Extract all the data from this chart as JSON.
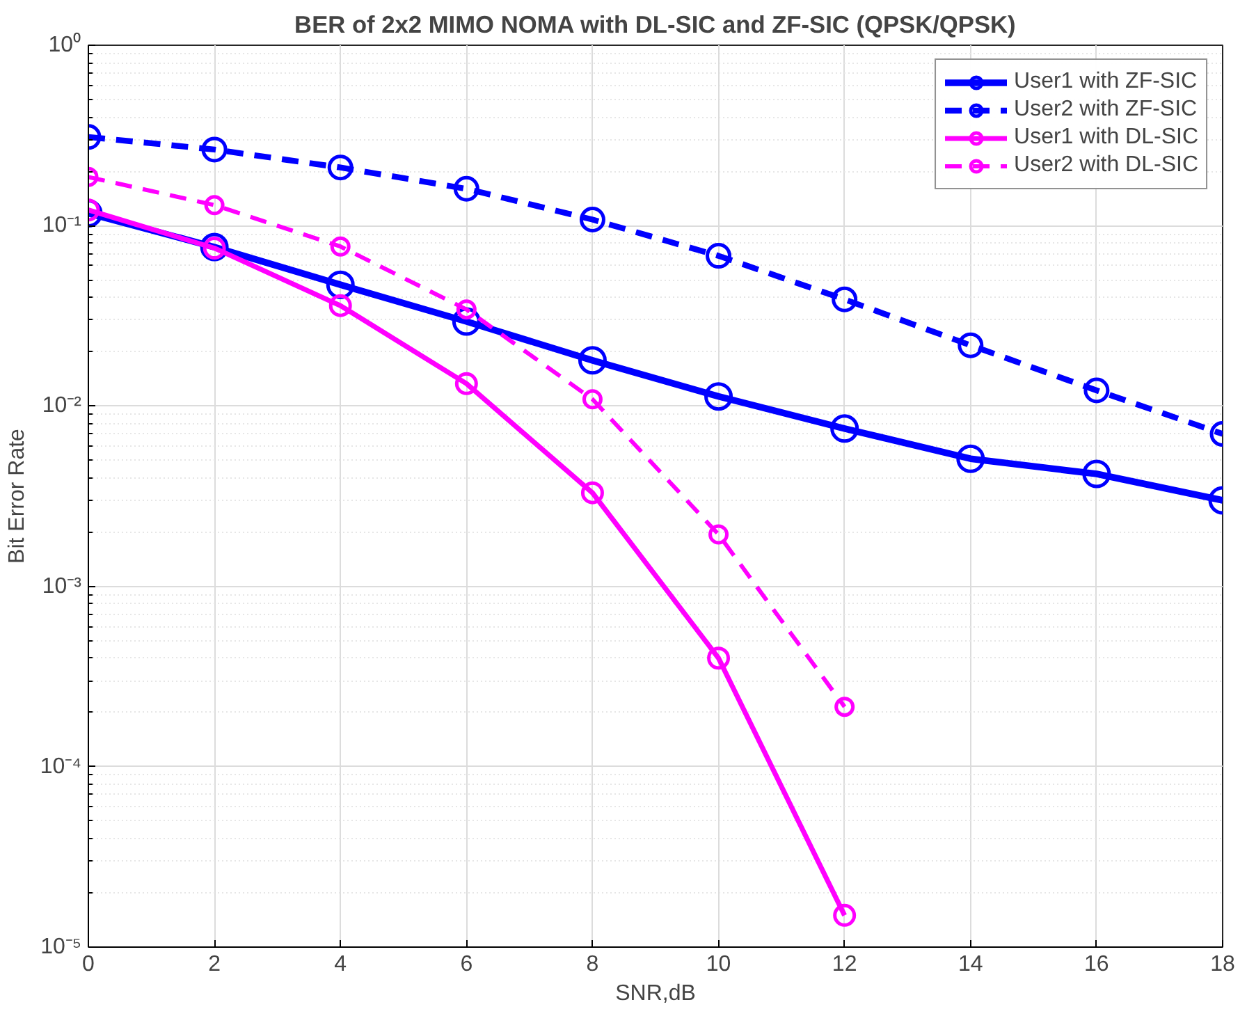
{
  "chart_data": {
    "type": "line",
    "title": "BER of 2x2 MIMO NOMA with DL-SIC and ZF-SIC (QPSK/QPSK)",
    "xlabel": "SNR,dB",
    "ylabel": "Bit Error Rate",
    "x": [
      0,
      2,
      4,
      6,
      8,
      10,
      12,
      14,
      16,
      18
    ],
    "series": [
      {
        "name": "User1 with ZF-SIC",
        "color": "#0000ff",
        "line_style": "solid",
        "values": [
          0.117,
          0.076,
          0.047,
          0.0294,
          0.0179,
          0.0113,
          0.0075,
          0.0051,
          0.0042,
          0.003
        ]
      },
      {
        "name": "User2 with ZF-SIC",
        "color": "#0000ff",
        "line_style": "dashed",
        "values": [
          0.31,
          0.264,
          0.21,
          0.16,
          0.108,
          0.068,
          0.039,
          0.0217,
          0.0122,
          0.007
        ]
      },
      {
        "name": "User1 with DL-SIC",
        "color": "#ff00ff",
        "line_style": "solid",
        "values": [
          0.122,
          0.075,
          0.036,
          0.0133,
          0.0033,
          0.0004,
          1.5e-05,
          null,
          null,
          null
        ]
      },
      {
        "name": "User2 with DL-SIC",
        "color": "#ff00ff",
        "line_style": "dashed",
        "values": [
          0.186,
          0.13,
          0.0766,
          0.0343,
          0.0109,
          0.00194,
          0.000215,
          null,
          null,
          null
        ]
      }
    ],
    "xlim": [
      0,
      18
    ],
    "xticks": [
      0,
      2,
      4,
      6,
      8,
      10,
      12,
      14,
      16,
      18
    ],
    "ylim": [
      1e-05,
      1
    ],
    "yticks": [
      {
        "value": 1e-05,
        "label": "10⁻⁵"
      },
      {
        "value": 0.0001,
        "label": "10⁻⁴"
      },
      {
        "value": 0.001,
        "label": "10⁻³"
      },
      {
        "value": 0.01,
        "label": "10⁻²"
      },
      {
        "value": 0.1,
        "label": "10⁻¹"
      },
      {
        "value": 1,
        "label": "10⁰"
      }
    ],
    "log": "y",
    "grid": true,
    "legend": "top right",
    "marker": "circle"
  }
}
